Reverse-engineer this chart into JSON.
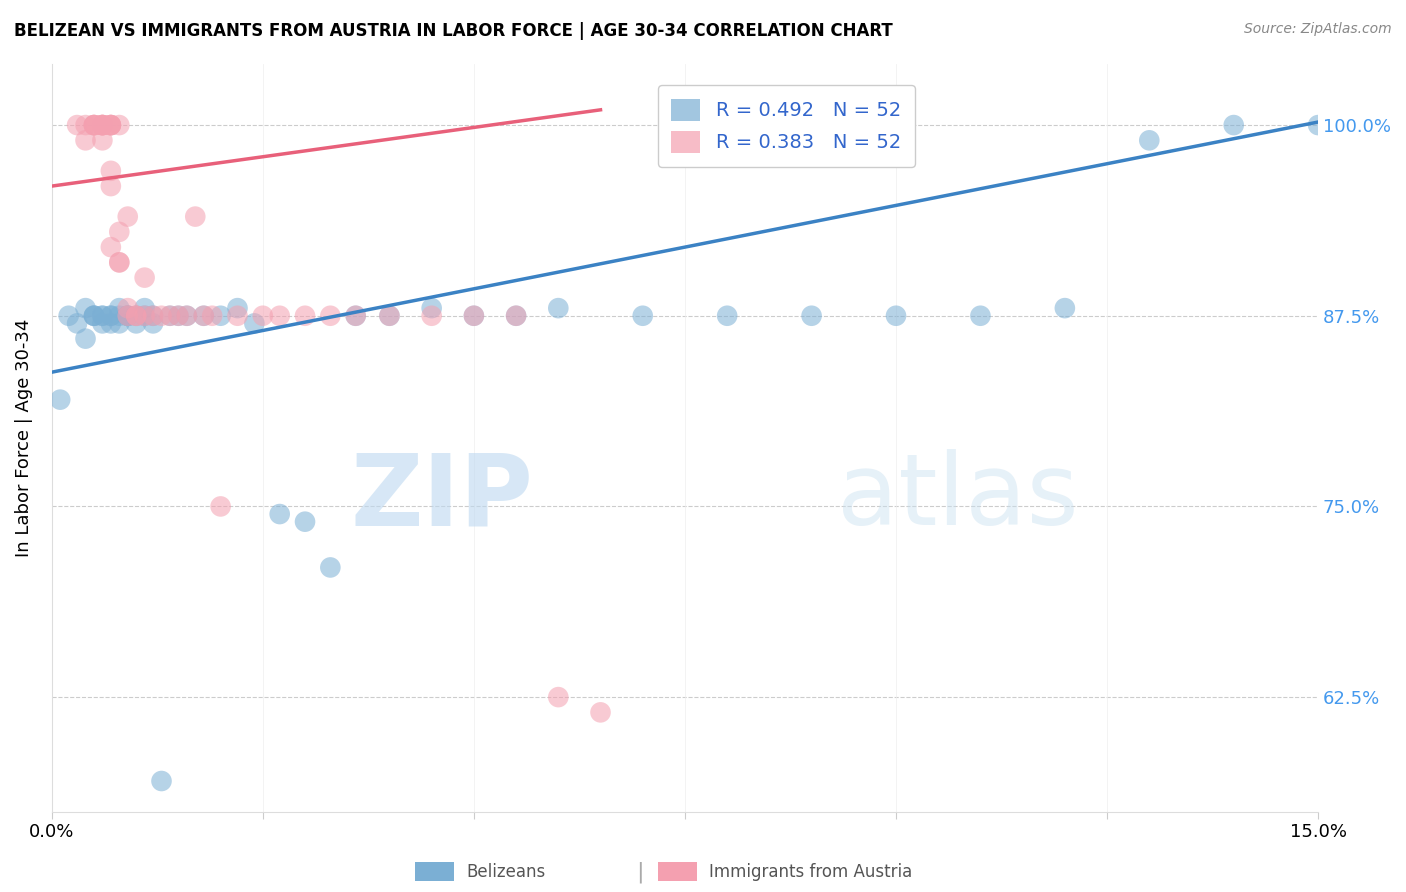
{
  "title": "BELIZEAN VS IMMIGRANTS FROM AUSTRIA IN LABOR FORCE | AGE 30-34 CORRELATION CHART",
  "source": "Source: ZipAtlas.com",
  "ylabel": "In Labor Force | Age 30-34",
  "xlim": [
    0.0,
    0.15
  ],
  "ylim": [
    0.55,
    1.04
  ],
  "yticks": [
    0.625,
    0.75,
    0.875,
    1.0
  ],
  "ytick_labels": [
    "62.5%",
    "75.0%",
    "87.5%",
    "100.0%"
  ],
  "blue_R": 0.492,
  "blue_N": 52,
  "pink_R": 0.383,
  "pink_N": 52,
  "blue_color": "#7BAFD4",
  "pink_color": "#F4A0B0",
  "blue_line_color": "#3B82C4",
  "pink_line_color": "#E8607A",
  "legend_label_blue": "Belizeans",
  "legend_label_pink": "Immigrants from Austria",
  "blue_scatter_x": [
    0.001,
    0.002,
    0.003,
    0.004,
    0.004,
    0.005,
    0.005,
    0.005,
    0.006,
    0.006,
    0.006,
    0.007,
    0.007,
    0.007,
    0.008,
    0.008,
    0.008,
    0.009,
    0.009,
    0.009,
    0.01,
    0.01,
    0.011,
    0.011,
    0.012,
    0.012,
    0.013,
    0.014,
    0.015,
    0.016,
    0.018,
    0.02,
    0.022,
    0.024,
    0.027,
    0.03,
    0.033,
    0.036,
    0.04,
    0.045,
    0.05,
    0.055,
    0.06,
    0.07,
    0.08,
    0.09,
    0.1,
    0.11,
    0.12,
    0.13,
    0.14,
    0.15
  ],
  "blue_scatter_y": [
    0.82,
    0.875,
    0.87,
    0.88,
    0.86,
    0.875,
    0.875,
    0.875,
    0.875,
    0.87,
    0.875,
    0.875,
    0.87,
    0.875,
    0.875,
    0.88,
    0.87,
    0.875,
    0.875,
    0.875,
    0.875,
    0.87,
    0.88,
    0.875,
    0.875,
    0.87,
    0.57,
    0.875,
    0.875,
    0.875,
    0.875,
    0.875,
    0.88,
    0.87,
    0.745,
    0.74,
    0.71,
    0.875,
    0.875,
    0.88,
    0.875,
    0.875,
    0.88,
    0.875,
    0.875,
    0.875,
    0.875,
    0.875,
    0.88,
    0.99,
    1.0,
    1.0
  ],
  "pink_scatter_x": [
    0.003,
    0.004,
    0.004,
    0.005,
    0.005,
    0.005,
    0.005,
    0.006,
    0.006,
    0.006,
    0.006,
    0.006,
    0.006,
    0.007,
    0.007,
    0.007,
    0.007,
    0.007,
    0.007,
    0.007,
    0.008,
    0.008,
    0.008,
    0.008,
    0.009,
    0.009,
    0.009,
    0.01,
    0.01,
    0.011,
    0.011,
    0.012,
    0.013,
    0.014,
    0.015,
    0.016,
    0.017,
    0.018,
    0.019,
    0.02,
    0.022,
    0.025,
    0.027,
    0.03,
    0.033,
    0.036,
    0.04,
    0.045,
    0.05,
    0.055,
    0.06,
    0.065
  ],
  "pink_scatter_y": [
    1.0,
    1.0,
    0.99,
    1.0,
    1.0,
    1.0,
    1.0,
    1.0,
    1.0,
    1.0,
    1.0,
    1.0,
    0.99,
    1.0,
    1.0,
    0.97,
    1.0,
    0.96,
    1.0,
    0.92,
    0.91,
    1.0,
    0.93,
    0.91,
    0.88,
    0.94,
    0.875,
    0.875,
    0.875,
    0.875,
    0.9,
    0.875,
    0.875,
    0.875,
    0.875,
    0.875,
    0.94,
    0.875,
    0.875,
    0.75,
    0.875,
    0.875,
    0.875,
    0.875,
    0.875,
    0.875,
    0.875,
    0.875,
    0.875,
    0.875,
    0.625,
    0.615
  ],
  "blue_line_x0": 0.0,
  "blue_line_y0": 0.838,
  "blue_line_x1": 0.15,
  "blue_line_y1": 1.002,
  "pink_line_x0": 0.0,
  "pink_line_y0": 0.96,
  "pink_line_x1": 0.065,
  "pink_line_y1": 1.01
}
